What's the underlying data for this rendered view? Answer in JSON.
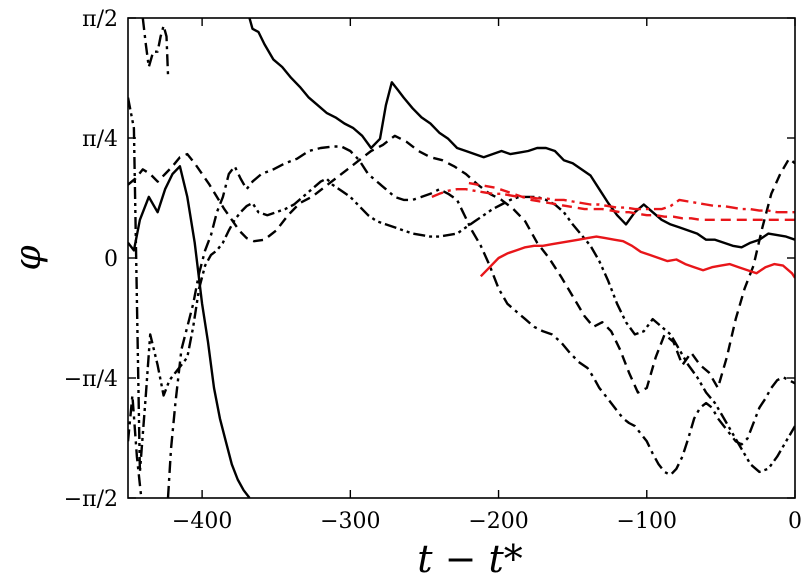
{
  "chart_data": {
    "type": "line",
    "title": "",
    "xlabel": "t − t*",
    "ylabel": "φ",
    "xlim": [
      -450,
      0
    ],
    "ylim": [
      -1.5708,
      1.5708
    ],
    "grid": false,
    "legend": "none",
    "x_ticks": [
      {
        "value": -400,
        "label": "−400"
      },
      {
        "value": -300,
        "label": "−300"
      },
      {
        "value": -200,
        "label": "−200"
      },
      {
        "value": -100,
        "label": "−100"
      },
      {
        "value": 0,
        "label": "0"
      }
    ],
    "y_ticks": [
      {
        "value": -1.5708,
        "label": "−π/2"
      },
      {
        "value": -0.7854,
        "label": "−π/4"
      },
      {
        "value": 0,
        "label": "0"
      },
      {
        "value": 0.7854,
        "label": "π/4"
      },
      {
        "value": 1.5708,
        "label": "π/2"
      }
    ],
    "series": [
      {
        "color": "#000000",
        "style": "solid",
        "x": [
          -450,
          -446,
          -442,
          -436,
          -430,
          -425,
          -420,
          -415,
          -410,
          -405,
          -400,
          -396,
          -392,
          -388,
          -384,
          -380,
          -376,
          -372,
          -368,
          -368,
          -366,
          -362,
          -358,
          -352,
          -346,
          -340,
          -334,
          -328,
          -322,
          -316,
          -310,
          -304,
          -298,
          -292,
          -286,
          -280,
          -276,
          -272,
          -268,
          -264,
          -258,
          -252,
          -246,
          -240,
          -234,
          -228,
          -222,
          -216,
          -210,
          -204,
          -198,
          -192,
          -186,
          -180,
          -174,
          -168,
          -162,
          -156,
          -150,
          -144,
          -138,
          -132,
          -126,
          -120,
          -114,
          -108,
          -102,
          -96,
          -90,
          -84,
          -78,
          -72,
          -66,
          -60,
          -54,
          -48,
          -42,
          -36,
          -30,
          -24,
          -18,
          -12,
          -6,
          0
        ],
        "y": [
          0.1,
          0.05,
          0.25,
          0.4,
          0.3,
          0.45,
          0.55,
          0.6,
          0.4,
          0.1,
          -0.3,
          -0.55,
          -0.85,
          -1.05,
          -1.2,
          -1.35,
          -1.45,
          -1.52,
          -1.57,
          1.57,
          1.5,
          1.48,
          1.4,
          1.3,
          1.25,
          1.18,
          1.12,
          1.05,
          1.0,
          0.95,
          0.92,
          0.88,
          0.85,
          0.8,
          0.72,
          0.78,
          1.0,
          1.15,
          1.1,
          1.05,
          0.98,
          0.92,
          0.88,
          0.82,
          0.78,
          0.72,
          0.7,
          0.68,
          0.66,
          0.68,
          0.7,
          0.68,
          0.69,
          0.7,
          0.72,
          0.72,
          0.7,
          0.64,
          0.62,
          0.58,
          0.54,
          0.45,
          0.36,
          0.28,
          0.22,
          0.3,
          0.35,
          0.3,
          0.25,
          0.22,
          0.2,
          0.18,
          0.16,
          0.12,
          0.12,
          0.1,
          0.08,
          0.07,
          0.1,
          0.12,
          0.16,
          0.15,
          0.14,
          0.12
        ]
      },
      {
        "color": "#000000",
        "style": "dashed",
        "x": [
          -450,
          -445,
          -440,
          -435,
          -430,
          -425,
          -420,
          -415,
          -410,
          -405,
          -400,
          -395,
          -390,
          -385,
          -380,
          -375,
          -370,
          -365,
          -358,
          -350,
          -342,
          -334,
          -326,
          -318,
          -310,
          -302,
          -294,
          -286,
          -278,
          -270,
          -262,
          -254,
          -246,
          -238,
          -230,
          -222,
          -214,
          -206,
          -198,
          -190,
          -182,
          -174,
          -166,
          -158,
          -150,
          -142,
          -136,
          -130,
          -124,
          -118,
          -112,
          -106,
          -100,
          -94,
          -88,
          -82,
          -76,
          -70,
          -64,
          -58,
          -52,
          -46,
          -40,
          -34,
          -28,
          -22,
          -16,
          -10,
          -4,
          0
        ],
        "y": [
          0.48,
          0.52,
          0.58,
          0.55,
          0.5,
          0.55,
          0.6,
          0.66,
          0.68,
          0.62,
          0.55,
          0.48,
          0.4,
          0.32,
          0.25,
          0.18,
          0.13,
          0.11,
          0.12,
          0.18,
          0.28,
          0.36,
          0.4,
          0.46,
          0.52,
          0.58,
          0.64,
          0.7,
          0.74,
          0.8,
          0.76,
          0.7,
          0.66,
          0.64,
          0.6,
          0.55,
          0.48,
          0.42,
          0.38,
          0.32,
          0.24,
          0.1,
          0.0,
          -0.12,
          -0.25,
          -0.38,
          -0.45,
          -0.42,
          -0.48,
          -0.6,
          -0.75,
          -0.88,
          -0.85,
          -0.65,
          -0.5,
          -0.55,
          -0.7,
          -0.62,
          -0.7,
          -0.75,
          -0.85,
          -0.65,
          -0.4,
          -0.2,
          -0.05,
          0.2,
          0.42,
          0.55,
          0.65,
          0.62
        ]
      },
      {
        "color": "#000000",
        "style": "dashdot",
        "x": [
          -450,
          -447,
          -444,
          -441,
          -440,
          -438,
          -436,
          -433,
          -430,
          -428,
          -426,
          -424,
          -423,
          -423,
          -421,
          -418,
          -414,
          -410,
          -406,
          -402,
          -398,
          -394,
          -390,
          -386,
          -382,
          -378,
          -374,
          -370,
          -366,
          -360,
          -352,
          -344,
          -336,
          -328,
          -320,
          -312,
          -306,
          -300,
          -294,
          -288,
          -282,
          -276,
          -270,
          -264,
          -258,
          -252,
          -246,
          -240,
          -234,
          -228,
          -224,
          -218,
          -212,
          -206,
          -200,
          -194,
          -188,
          -182,
          -176,
          -170,
          -164,
          -158,
          -152,
          -146,
          -140,
          -136,
          -132,
          -128,
          -124,
          -120,
          -116,
          -112,
          -108,
          -104,
          -100,
          -96,
          -92,
          -88,
          -84,
          -80,
          -76,
          -72,
          -68,
          -64,
          -60,
          -56,
          -52,
          -48,
          -44,
          -40,
          -36,
          -32,
          -28,
          -24,
          -20,
          -16,
          -12,
          -8,
          -4,
          0
        ],
        "y": [
          -1.2,
          -0.9,
          -1.3,
          -1.57,
          1.57,
          1.4,
          1.25,
          1.35,
          1.35,
          1.45,
          1.52,
          1.45,
          1.2,
          -1.57,
          -1.25,
          -0.95,
          -0.6,
          -0.45,
          -0.3,
          -0.1,
          0.05,
          0.15,
          0.3,
          0.4,
          0.55,
          0.6,
          0.52,
          0.45,
          0.5,
          0.55,
          0.58,
          0.62,
          0.65,
          0.7,
          0.72,
          0.73,
          0.73,
          0.7,
          0.64,
          0.55,
          0.5,
          0.45,
          0.4,
          0.38,
          0.38,
          0.4,
          0.42,
          0.45,
          0.42,
          0.38,
          0.3,
          0.18,
          0.08,
          -0.05,
          -0.2,
          -0.3,
          -0.35,
          -0.4,
          -0.45,
          -0.48,
          -0.5,
          -0.55,
          -0.62,
          -0.68,
          -0.72,
          -0.78,
          -0.85,
          -0.9,
          -0.95,
          -1.0,
          -1.05,
          -1.08,
          -1.1,
          -1.15,
          -1.2,
          -1.28,
          -1.35,
          -1.4,
          -1.42,
          -1.38,
          -1.3,
          -1.18,
          -1.05,
          -0.98,
          -0.95,
          -0.98,
          -1.05,
          -1.1,
          -1.15,
          -1.2,
          -1.22,
          -1.18,
          -1.08,
          -0.98,
          -0.92,
          -0.85,
          -0.8,
          -0.78,
          -0.8,
          -0.82
        ]
      },
      {
        "color": "#000000",
        "style": "dashdotdot",
        "x": [
          -450,
          -446,
          -442,
          -438,
          -435,
          -430,
          -426,
          -422,
          -418,
          -414,
          -410,
          -406,
          -402,
          -398,
          -394,
          -390,
          -386,
          -382,
          -378,
          -374,
          -370,
          -366,
          -362,
          -356,
          -350,
          -344,
          -338,
          -332,
          -326,
          -320,
          -316,
          -312,
          -306,
          -300,
          -294,
          -288,
          -282,
          -276,
          -270,
          -264,
          -258,
          -252,
          -246,
          -240,
          -234,
          -228,
          -222,
          -216,
          -210,
          -204,
          -198,
          -192,
          -186,
          -180,
          -174,
          -168,
          -162,
          -156,
          -150,
          -144,
          -138,
          -132,
          -126,
          -120,
          -114,
          -108,
          -102,
          -96,
          -90,
          -84,
          -78,
          -72,
          -66,
          -60,
          -54,
          -48,
          -42,
          -36,
          -30,
          -24,
          -18,
          -12,
          -6,
          0
        ],
        "y": [
          1.05,
          0.85,
          -1.4,
          -0.9,
          -0.5,
          -0.7,
          -0.9,
          -0.8,
          -0.75,
          -0.7,
          -0.65,
          -0.45,
          -0.2,
          -0.05,
          0.02,
          0.05,
          0.1,
          0.18,
          0.25,
          0.3,
          0.34,
          0.36,
          0.3,
          0.28,
          0.3,
          0.32,
          0.35,
          0.4,
          0.45,
          0.5,
          0.52,
          0.48,
          0.44,
          0.4,
          0.34,
          0.28,
          0.24,
          0.22,
          0.2,
          0.18,
          0.16,
          0.15,
          0.14,
          0.14,
          0.15,
          0.16,
          0.2,
          0.24,
          0.28,
          0.32,
          0.35,
          0.38,
          0.4,
          0.4,
          0.4,
          0.38,
          0.35,
          0.3,
          0.22,
          0.15,
          0.08,
          -0.02,
          -0.15,
          -0.3,
          -0.42,
          -0.5,
          -0.48,
          -0.4,
          -0.45,
          -0.5,
          -0.6,
          -0.7,
          -0.78,
          -0.88,
          -0.95,
          -1.05,
          -1.15,
          -1.25,
          -1.35,
          -1.4,
          -1.38,
          -1.3,
          -1.2,
          -1.1
        ]
      },
      {
        "color": "#e8161a",
        "style": "solid",
        "x": [
          -212,
          -206,
          -200,
          -194,
          -188,
          -182,
          -176,
          -170,
          -164,
          -158,
          -152,
          -146,
          -140,
          -134,
          -128,
          -122,
          -116,
          -110,
          -104,
          -98,
          -92,
          -86,
          -80,
          -74,
          -68,
          -62,
          -56,
          -50,
          -44,
          -38,
          -32,
          -26,
          -20,
          -14,
          -8,
          -2,
          0
        ],
        "y": [
          -0.12,
          -0.06,
          0.0,
          0.03,
          0.05,
          0.07,
          0.08,
          0.08,
          0.09,
          0.1,
          0.11,
          0.12,
          0.13,
          0.14,
          0.13,
          0.12,
          0.11,
          0.08,
          0.04,
          0.02,
          0.0,
          -0.02,
          -0.01,
          -0.04,
          -0.06,
          -0.08,
          -0.06,
          -0.05,
          -0.04,
          -0.06,
          -0.08,
          -0.1,
          -0.06,
          -0.04,
          -0.05,
          -0.1,
          -0.13
        ]
      },
      {
        "color": "#e8161a",
        "style": "dashed",
        "x": [
          -220,
          -214,
          -208,
          -202,
          -196,
          -190,
          -184,
          -178,
          -172,
          -166,
          -160,
          -154,
          -148,
          -142,
          -136,
          -130,
          -124,
          -118,
          -112,
          -106,
          -100,
          -94,
          -88,
          -82,
          -76,
          -70,
          -64,
          -58,
          -52,
          -46,
          -40,
          -34,
          -28,
          -22,
          -16,
          -10,
          -4,
          0
        ],
        "y": [
          0.49,
          0.48,
          0.47,
          0.46,
          0.44,
          0.42,
          0.4,
          0.38,
          0.37,
          0.36,
          0.35,
          0.34,
          0.33,
          0.32,
          0.32,
          0.32,
          0.31,
          0.3,
          0.3,
          0.29,
          0.28,
          0.28,
          0.27,
          0.27,
          0.26,
          0.26,
          0.25,
          0.25,
          0.25,
          0.25,
          0.25,
          0.25,
          0.25,
          0.25,
          0.25,
          0.25,
          0.25,
          0.25
        ]
      },
      {
        "color": "#e8161a",
        "style": "dashdot",
        "x": [
          -245,
          -240,
          -234,
          -228,
          -222,
          -216,
          -210,
          -204,
          -198,
          -192,
          -186,
          -180,
          -174,
          -168,
          -162,
          -156,
          -150,
          -144,
          -138,
          -132,
          -126,
          -120,
          -114,
          -108,
          -102,
          -96,
          -90,
          -84,
          -78,
          -72,
          -66,
          -60,
          -54,
          -48,
          -42,
          -36,
          -30,
          -24,
          -18,
          -12,
          -6,
          0
        ],
        "y": [
          0.4,
          0.42,
          0.44,
          0.45,
          0.45,
          0.44,
          0.43,
          0.42,
          0.42,
          0.41,
          0.4,
          0.4,
          0.39,
          0.39,
          0.38,
          0.38,
          0.37,
          0.36,
          0.35,
          0.35,
          0.34,
          0.33,
          0.33,
          0.32,
          0.32,
          0.32,
          0.32,
          0.34,
          0.38,
          0.37,
          0.36,
          0.35,
          0.34,
          0.34,
          0.33,
          0.32,
          0.32,
          0.31,
          0.31,
          0.3,
          0.3,
          0.3
        ]
      }
    ]
  }
}
